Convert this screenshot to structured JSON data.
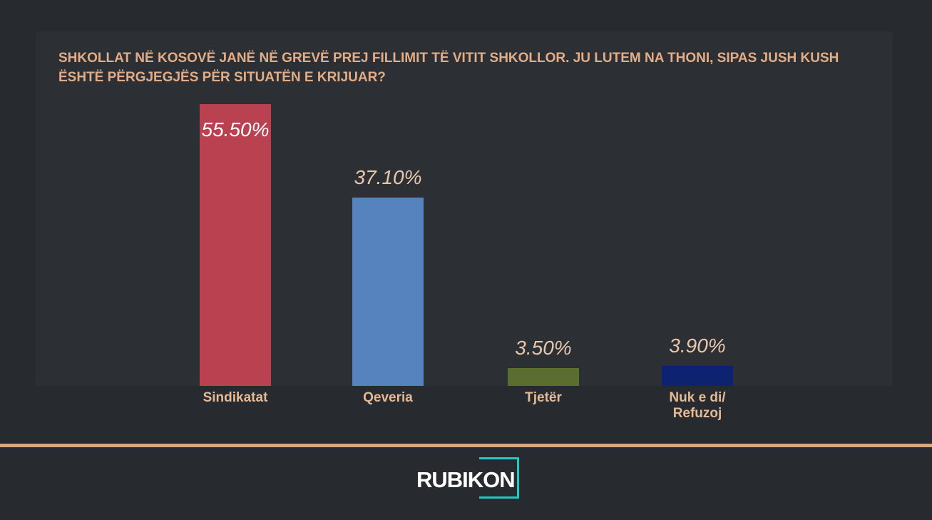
{
  "chart_data": {
    "type": "bar",
    "title": "Shkollat në Kosovë janë në grevë prej fillimit të vitit shkollor. Ju lutem na thoni, sipas jush kush është përgjegjës për situatën e krijuar?",
    "categories": [
      "Sindikatat",
      "Qeveria",
      "Tjetër",
      "Nuk e di/ Refuzoj"
    ],
    "values": [
      55.5,
      37.1,
      3.5,
      3.9
    ],
    "value_labels": [
      "55.50%",
      "37.10%",
      "3.50%",
      "3.90%"
    ],
    "colors": [
      "#b94150",
      "#5683bd",
      "#5b6d31",
      "#0d2270"
    ]
  },
  "logo": "RUBIKON"
}
